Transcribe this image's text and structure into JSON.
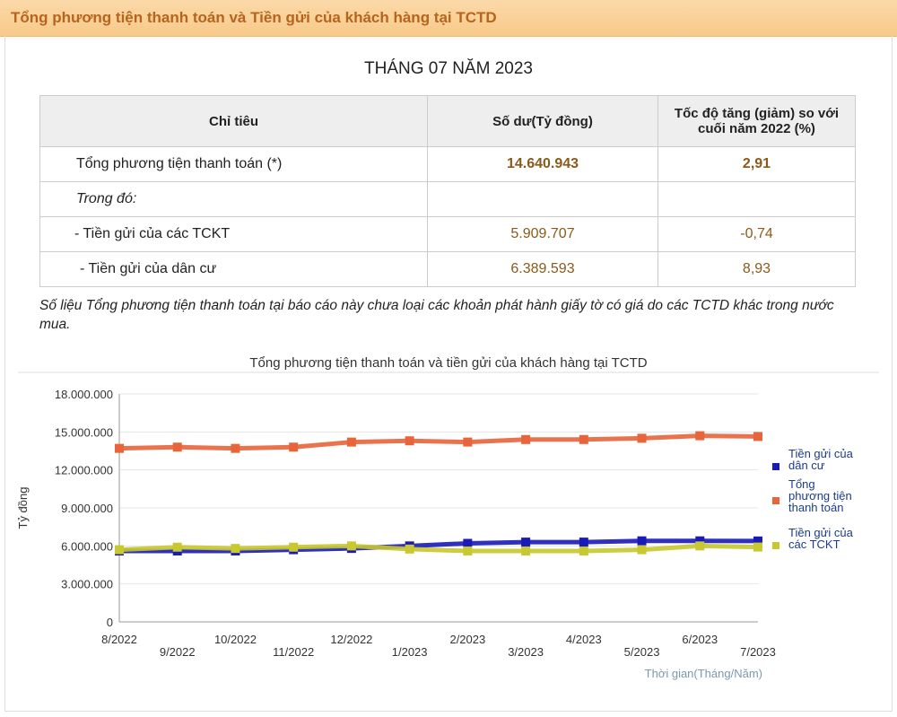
{
  "header": {
    "title": "Tổng phương tiện thanh toán và Tiền gửi của khách hàng tại TCTD"
  },
  "report": {
    "month": "THÁNG 07 NĂM 2023",
    "columns": [
      "Chỉ tiêu",
      "Số dư(Tỷ đồng)",
      "Tốc độ tăng (giảm) so với cuối năm 2022 (%)"
    ],
    "rows": [
      {
        "label": "Tổng phương tiện thanh toán (*)",
        "value": "14.640.943",
        "change": "2,91"
      },
      {
        "label": "Trong đó:",
        "value": "",
        "change": ""
      },
      {
        "label": "- Tiền gửi của các TCKT",
        "value": "5.909.707",
        "change": "-0,74"
      },
      {
        "label": "- Tiền gửi của dân cư",
        "value": "6.389.593",
        "change": "8,93"
      }
    ],
    "note": "Số liệu Tổng phương tiện thanh toán tại báo cáo này chưa loại các khoản phát hành giấy tờ có giá do các TCTD khác trong nước mua."
  },
  "chart_data": {
    "type": "line",
    "title": "Tổng phương tiện thanh toán và tiền gửi của khách hàng tại TCTD",
    "xlabel": "Thời gian(Tháng/Năm)",
    "ylabel": "Tỷ đồng",
    "ylim": [
      0,
      18000000
    ],
    "yticks": [
      "0",
      "3.000.000",
      "6.000.000",
      "9.000.000",
      "12.000.000",
      "15.000.000",
      "18.000.000"
    ],
    "categories": [
      "8/2022",
      "9/2022",
      "10/2022",
      "11/2022",
      "12/2022",
      "1/2023",
      "2/2023",
      "3/2023",
      "4/2023",
      "5/2023",
      "6/2023",
      "7/2023"
    ],
    "legend_position": "right",
    "series": [
      {
        "name": "Tiền gửi của dân cư",
        "color": "#1a1ab8",
        "values": [
          5600000,
          5600000,
          5600000,
          5700000,
          5800000,
          6000000,
          6200000,
          6300000,
          6300000,
          6400000,
          6400000,
          6389593
        ]
      },
      {
        "name": "Tổng phương tiện thanh toán",
        "color": "#e8643a",
        "values": [
          13700000,
          13800000,
          13700000,
          13800000,
          14200000,
          14300000,
          14200000,
          14400000,
          14400000,
          14500000,
          14700000,
          14640943
        ]
      },
      {
        "name": "Tiền gửi của các TCKT",
        "color": "#c8c830",
        "values": [
          5700000,
          5900000,
          5800000,
          5900000,
          6000000,
          5750000,
          5600000,
          5600000,
          5600000,
          5700000,
          6000000,
          5909707
        ]
      }
    ]
  }
}
